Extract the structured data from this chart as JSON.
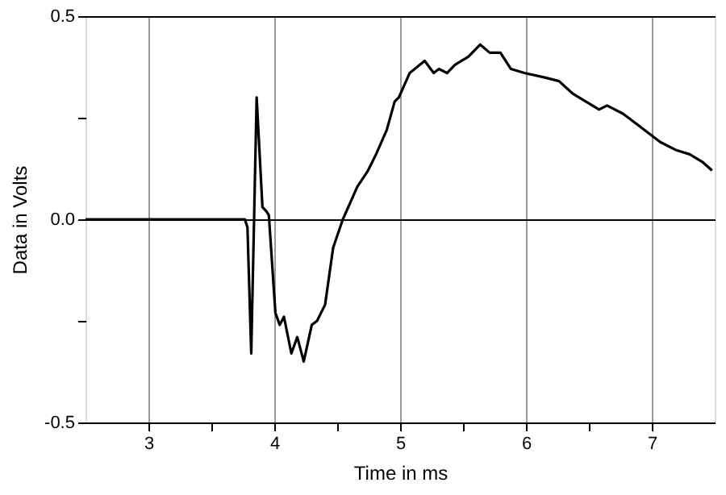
{
  "chart_data": {
    "type": "line",
    "xlabel": "Time in ms",
    "ylabel": "Data in Volts",
    "xlim": [
      2.5,
      7.5
    ],
    "ylim": [
      -0.5,
      0.5
    ],
    "xticks": [
      3,
      {
        "value": 3.5,
        "label": null
      },
      4,
      {
        "value": 4.5,
        "label": null
      },
      5,
      {
        "value": 5.5,
        "label": null
      },
      6,
      {
        "value": 6.5,
        "label": null
      },
      7
    ],
    "yticks": [
      -0.5,
      {
        "value": -0.25,
        "label": null
      },
      {
        "value": 0,
        "label": "0.0"
      },
      {
        "value": 0.25,
        "label": null
      },
      0.5
    ],
    "grid": true,
    "marker": "none",
    "line_style": "solid",
    "series": [
      {
        "color": "#000000",
        "x": [
          2.5,
          3.766,
          3.787,
          3.817,
          3.86,
          3.906,
          3.936,
          3.957,
          4.009,
          4.043,
          4.077,
          4.136,
          4.183,
          4.234,
          4.298,
          4.34,
          4.404,
          4.468,
          4.545,
          4.66,
          4.745,
          4.809,
          4.894,
          4.957,
          4.99,
          5.076,
          5.195,
          5.267,
          5.309,
          5.373,
          5.436,
          5.542,
          5.636,
          5.712,
          5.797,
          5.881,
          5.987,
          6.136,
          6.263,
          6.369,
          6.475,
          6.581,
          6.644,
          6.771,
          6.898,
          7.068,
          7.195,
          7.301,
          7.407,
          7.479
        ],
        "values": [
          0,
          0,
          -0.02,
          -0.33,
          0.3,
          0.03,
          0.02,
          0.01,
          -0.23,
          -0.26,
          -0.24,
          -0.33,
          -0.29,
          -0.35,
          -0.26,
          -0.25,
          -0.21,
          -0.07,
          0.0,
          0.08,
          0.12,
          0.16,
          0.22,
          0.29,
          0.3,
          0.36,
          0.39,
          0.36,
          0.37,
          0.36,
          0.38,
          0.4,
          0.43,
          0.41,
          0.41,
          0.37,
          0.36,
          0.35,
          0.34,
          0.31,
          0.29,
          0.27,
          0.28,
          0.26,
          0.23,
          0.19,
          0.17,
          0.16,
          0.14,
          0.12
        ]
      }
    ]
  }
}
